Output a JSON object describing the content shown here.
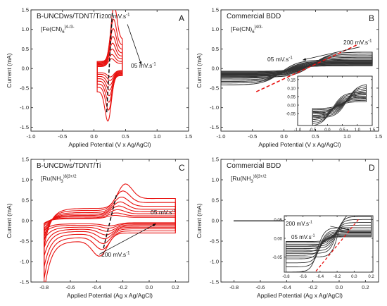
{
  "colors": {
    "red": "#e8110f",
    "black": "#333333",
    "dash": "#111111"
  },
  "chart_data": [
    {
      "type": "line",
      "panel_letter": "A",
      "title": "B-UNCDws/TDNT/Ti",
      "redox": {
        "base": "[Fe(CN)",
        "sub": "6",
        "sup": "]4-/3-"
      },
      "rate_high": "200 mV.s-1",
      "rate_low": "05 mV.s-1",
      "xlabel": "Applied Potential (V x Ag/AgCl)",
      "ylabel": "Current (mA)",
      "xlim": [
        -1.0,
        1.5
      ],
      "ylim": [
        -1.6,
        1.5
      ],
      "xticks": [
        -1.0,
        -0.5,
        0.0,
        0.5,
        1.0,
        1.5
      ],
      "yticks": [
        -1.5,
        -1.0,
        -0.5,
        0.0,
        0.5,
        1.0,
        1.5
      ],
      "color": "red",
      "cv": {
        "E1": 0.05,
        "E2": 0.45,
        "E0": 0.27,
        "w": 0.07,
        "ipa": [
          0.2,
          0.3,
          0.42,
          0.55,
          0.7,
          0.88,
          1.1,
          1.42
        ],
        "ipc_ratio": 0.82,
        "cap": [
          0.05,
          0.06,
          0.08,
          0.1,
          0.12,
          0.14,
          0.16,
          0.18
        ],
        "sep": [
          0.01,
          0.015,
          0.02,
          0.025,
          0.03,
          0.035,
          0.04,
          0.05
        ]
      },
      "dashed_line": [
        [
          0.29,
          1.42
        ],
        [
          0.2,
          -1.15
        ]
      ],
      "arrow": {
        "from": [
          0.53,
          1.13
        ],
        "to": [
          0.75,
          0.1
        ]
      }
    },
    {
      "type": "line",
      "panel_letter": "B",
      "title": "Commercial BDD",
      "redox": {
        "base": "[Fe(CN)",
        "sub": "6",
        "sup": "]4/3-"
      },
      "rate_high": "200 mV.s-1",
      "rate_low": "05 mV.s-1",
      "xlabel": "Applied Potential (V x Ag/AgCl)",
      "ylabel": "Current (mA)",
      "xlim": [
        -1.0,
        1.5
      ],
      "ylim": [
        -1.6,
        1.5
      ],
      "xticks": [
        -1.0,
        -0.5,
        0.0,
        0.5,
        1.0,
        1.5
      ],
      "yticks": [
        -1.5,
        -1.0,
        -0.5,
        0.0,
        0.5,
        1.0,
        1.5
      ],
      "color": "black",
      "cv": {
        "E1": -1.0,
        "E2": 1.4,
        "E0": 0.2,
        "k": 0.28,
        "plat": [
          0.1,
          0.13,
          0.16,
          0.19,
          0.22,
          0.25,
          0.28,
          0.32
        ],
        "cap": [
          0.03,
          0.04,
          0.05,
          0.06,
          0.07,
          0.08,
          0.09,
          0.1
        ],
        "sep": [
          0.1,
          0.12,
          0.14,
          0.16,
          0.18,
          0.2,
          0.22,
          0.25
        ]
      },
      "dashed_line": [
        [
          1.15,
          0.6
        ],
        [
          -0.45,
          -0.6
        ]
      ],
      "arrow": {
        "from": [
          1.2,
          0.55
        ],
        "to": [
          0.3,
          0.22
        ]
      },
      "inset": {
        "xlim": [
          -1.0,
          1.5
        ],
        "ylim": [
          -0.12,
          0.17
        ],
        "xticks": [
          -1.0,
          -0.5,
          0.0,
          0.5,
          1.0,
          1.5
        ],
        "yticks": [
          -0.05,
          0.0,
          0.05,
          0.1,
          0.15
        ],
        "ytick_labels": [
          "-0.05",
          "0.00",
          "0.05",
          "0.10",
          "0.15"
        ],
        "cv": {
          "E1": -0.5,
          "E2": 1.3,
          "E0": 0.4,
          "k": 0.35,
          "plat": [
            0.03,
            0.04,
            0.05,
            0.06,
            0.07,
            0.08,
            0.09,
            0.1
          ],
          "cap": [
            0.01,
            0.012,
            0.014,
            0.016,
            0.018,
            0.02,
            0.022,
            0.025
          ],
          "sep": [
            0.1,
            0.12,
            0.14,
            0.16,
            0.18,
            0.2,
            0.22,
            0.25
          ]
        }
      }
    },
    {
      "type": "line",
      "panel_letter": "C",
      "title": "B-UNCDws/TDNT/Ti",
      "redox": {
        "base": "[Ru(NH",
        "sub": "3",
        "sup": ")6]3+/2"
      },
      "rate_high": "200 mV.s-1",
      "rate_low": "05 mV.s-1",
      "xlabel": "Applied Potential (Ag x Ag/AgCl)",
      "ylabel": "Current (mA)",
      "xlim": [
        -0.9,
        0.3
      ],
      "ylim": [
        -1.5,
        1.5
      ],
      "xticks": [
        -0.8,
        -0.6,
        -0.4,
        -0.2,
        0.0,
        0.2
      ],
      "yticks": [
        -1.5,
        -1.0,
        -0.5,
        0.0,
        0.5,
        1.0,
        1.5
      ],
      "color": "red",
      "cv": {
        "E1": -0.8,
        "E2": 0.2,
        "E0": -0.28,
        "w": 0.08,
        "ipa": [
          0.08,
          0.12,
          0.17,
          0.23,
          0.3,
          0.38,
          0.48,
          0.6
        ],
        "ipc_ratio": 0.95,
        "cap": [
          0.05,
          0.07,
          0.1,
          0.13,
          0.16,
          0.2,
          0.25,
          0.3
        ],
        "sep": [
          0.02,
          0.03,
          0.04,
          0.05,
          0.06,
          0.07,
          0.08,
          0.1
        ],
        "tail": [
          0.15,
          0.2,
          0.3,
          0.45,
          0.6,
          0.8,
          1.0,
          1.25
        ]
      },
      "dashed_line": [
        [
          -0.25,
          0.62
        ],
        [
          -0.35,
          -0.7
        ]
      ],
      "arrow": {
        "from": [
          -0.38,
          -0.82
        ],
        "to": [
          0.05,
          -0.08
        ]
      }
    },
    {
      "type": "line",
      "panel_letter": "D",
      "title": "Commercial BDD",
      "redox": {
        "base": "[Ru(NH",
        "sub": "3",
        "sup": ")6]3+/2"
      },
      "rate_high": "200 mV.s-1",
      "rate_low": "05 mV.s-1",
      "xlabel": "Applied Potential (Ag x Ag/AgCl)",
      "ylabel": "Current (mA)",
      "xlim": [
        -0.9,
        0.3
      ],
      "ylim": [
        -1.5,
        1.5
      ],
      "xticks": [
        -0.8,
        -0.6,
        -0.4,
        -0.2,
        0.0,
        0.2
      ],
      "yticks": [
        -1.5,
        -1.0,
        -0.5,
        0.0,
        0.5,
        1.0,
        1.5
      ],
      "color": "black",
      "cv": {
        "E1": -0.8,
        "E2": 0.2,
        "E0": -0.3,
        "k": 0.0,
        "plat": [
          0.003,
          0.003,
          0.003,
          0.003,
          0.003,
          0.003,
          0.003,
          0.003
        ],
        "cap": [
          0.003,
          0.003,
          0.003,
          0.003,
          0.003,
          0.003,
          0.003,
          0.003
        ],
        "sep": [
          0,
          0,
          0,
          0,
          0,
          0,
          0,
          0
        ]
      },
      "inset": {
        "xlim": [
          -0.82,
          0.22
        ],
        "ylim": [
          -0.09,
          0.06
        ],
        "xticks": [
          -0.8,
          -0.6,
          -0.4,
          -0.2,
          0.0,
          0.2
        ],
        "yticks": [
          -0.05,
          0.0,
          0.05
        ],
        "ytick_labels": [
          "-0.05",
          "0.00",
          "0.05"
        ],
        "cv": {
          "E1": -0.8,
          "E2": 0.2,
          "E0": -0.3,
          "k": 0.08,
          "plat": [
            0.01,
            0.014,
            0.018,
            0.023,
            0.028,
            0.034,
            0.04,
            0.048
          ],
          "cap": [
            0.006,
            0.008,
            0.01,
            0.012,
            0.014,
            0.016,
            0.018,
            0.02
          ],
          "sep": [
            0.04,
            0.05,
            0.06,
            0.07,
            0.08,
            0.09,
            0.1,
            0.12
          ],
          "neg_scale": 1.45
        },
        "dashed_line": [
          [
            0.05,
            0.05
          ],
          [
            -0.45,
            -0.088
          ]
        ],
        "arrow": {
          "from": [
            -0.28,
            0.032
          ],
          "to": [
            -0.05,
            0.022
          ]
        },
        "rate_high": "200 mV.s-1",
        "rate_low": "05 mV.s-1"
      }
    }
  ]
}
